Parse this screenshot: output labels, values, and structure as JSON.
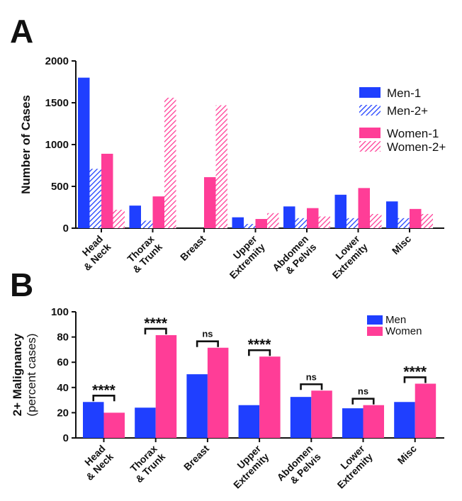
{
  "panels": {
    "a": "A",
    "b": "B"
  },
  "colors": {
    "men": "#1f3fff",
    "women": "#ff3d97"
  },
  "chart_data": [
    {
      "type": "bar",
      "panel": "A",
      "categories": [
        [
          "Head",
          "& Neck"
        ],
        [
          "Thorax",
          "& Trunk"
        ],
        [
          "Breast"
        ],
        [
          "Upper",
          "Extremity"
        ],
        [
          "Abdomen",
          "& Pelvis"
        ],
        [
          "Lower",
          "Extremity"
        ],
        [
          "Misc"
        ]
      ],
      "series": [
        {
          "name": "Men-1",
          "pattern": "solid",
          "color": "#1f3fff",
          "values": [
            1800,
            270,
            0,
            130,
            260,
            400,
            320
          ]
        },
        {
          "name": "Men-2+",
          "pattern": "hatched",
          "color": "#1f3fff",
          "values": [
            710,
            90,
            0,
            50,
            120,
            120,
            120
          ]
        },
        {
          "name": "Women-1",
          "pattern": "solid",
          "color": "#ff3d97",
          "values": [
            890,
            380,
            610,
            110,
            240,
            480,
            230
          ]
        },
        {
          "name": "Women-2+",
          "pattern": "hatched",
          "color": "#ff3d97",
          "values": [
            220,
            1560,
            1470,
            180,
            140,
            170,
            170
          ]
        }
      ],
      "ylabel": "Number of Cases",
      "ylim": [
        0,
        2000
      ],
      "yticks": [
        "0",
        "500",
        "1000",
        "1500",
        "2000"
      ],
      "legend_position": "top-right",
      "grid": false
    },
    {
      "type": "bar",
      "panel": "B",
      "categories": [
        [
          "Head",
          "& Neck"
        ],
        [
          "Thorax",
          "& Trunk"
        ],
        [
          "Breast"
        ],
        [
          "Upper",
          "Extremity"
        ],
        [
          "Abdomen",
          "& Pelvis"
        ],
        [
          "Lower",
          "Extremity"
        ],
        [
          "Misc"
        ]
      ],
      "series": [
        {
          "name": "Men",
          "color": "#1f3fff",
          "values": [
            28.5,
            24,
            50.5,
            26,
            32.5,
            23.5,
            28.5
          ]
        },
        {
          "name": "Women",
          "color": "#ff3d97",
          "values": [
            20,
            81.5,
            71.5,
            64.5,
            37.5,
            26,
            43
          ]
        }
      ],
      "significance": [
        "****",
        "****",
        "ns",
        "****",
        "ns",
        "ns",
        "****"
      ],
      "ylabel": [
        "2+ Malignancy",
        "(percent cases)"
      ],
      "ylim": [
        0,
        100
      ],
      "yticks": [
        "0",
        "20",
        "40",
        "60",
        "80",
        "100"
      ],
      "legend_position": "top-right",
      "grid": false
    }
  ]
}
